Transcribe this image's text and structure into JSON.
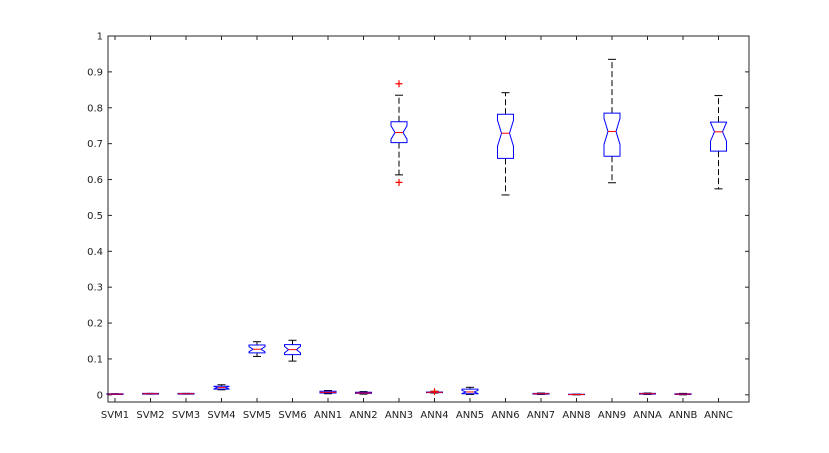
{
  "chart_data": {
    "type": "boxplot",
    "title": "",
    "xlabel": "",
    "ylabel": "",
    "ylim": [
      -0.02,
      1.0
    ],
    "yticks": [
      0,
      0.1,
      0.2,
      0.3,
      0.4,
      0.5,
      0.6,
      0.7,
      0.8,
      0.9,
      1
    ],
    "ytick_labels": [
      "0",
      "0.1",
      "0.2",
      "0.3",
      "0.4",
      "0.5",
      "0.6",
      "0.7",
      "0.8",
      "0.9",
      "1"
    ],
    "notched": true,
    "colors": {
      "box": "#0000ff",
      "median": "#ff0000",
      "whisker": "#000000",
      "outlier": "#ff0000",
      "axis": "#262626"
    },
    "categories": [
      "SVM1",
      "SVM2",
      "SVM3",
      "SVM4",
      "SVM5",
      "SVM6",
      "ANN1",
      "ANN2",
      "ANN3",
      "ANN4",
      "ANN5",
      "ANN6",
      "ANN7",
      "ANN8",
      "ANN9",
      "ANNA",
      "ANNB",
      "ANNC"
    ],
    "boxes": [
      {
        "min": 0.001,
        "q1": 0.001,
        "median": 0.002,
        "q3": 0.003,
        "max": 0.003,
        "outliers": []
      },
      {
        "min": 0.002,
        "q1": 0.002,
        "median": 0.003,
        "q3": 0.004,
        "max": 0.004,
        "outliers": []
      },
      {
        "min": 0.002,
        "q1": 0.002,
        "median": 0.003,
        "q3": 0.004,
        "max": 0.004,
        "outliers": []
      },
      {
        "min": 0.014,
        "q1": 0.016,
        "median": 0.02,
        "q3": 0.024,
        "max": 0.028,
        "outliers": []
      },
      {
        "min": 0.107,
        "q1": 0.117,
        "median": 0.127,
        "q3": 0.139,
        "max": 0.148,
        "outliers": []
      },
      {
        "min": 0.094,
        "q1": 0.112,
        "median": 0.126,
        "q3": 0.14,
        "max": 0.152,
        "outliers": []
      },
      {
        "min": 0.003,
        "q1": 0.005,
        "median": 0.007,
        "q3": 0.01,
        "max": 0.012,
        "outliers": []
      },
      {
        "min": 0.002,
        "q1": 0.004,
        "median": 0.005,
        "q3": 0.007,
        "max": 0.009,
        "outliers": []
      },
      {
        "min": 0.613,
        "q1": 0.703,
        "median": 0.731,
        "q3": 0.761,
        "max": 0.835,
        "outliers": [
          0.867,
          0.592
        ]
      },
      {
        "min": 0.005,
        "q1": 0.006,
        "median": 0.007,
        "q3": 0.008,
        "max": 0.01,
        "outliers": [
          0.009
        ]
      },
      {
        "min": 0.001,
        "q1": 0.003,
        "median": 0.008,
        "q3": 0.016,
        "max": 0.021,
        "outliers": []
      },
      {
        "min": 0.557,
        "q1": 0.659,
        "median": 0.729,
        "q3": 0.782,
        "max": 0.842,
        "outliers": []
      },
      {
        "min": 0.001,
        "q1": 0.002,
        "median": 0.003,
        "q3": 0.004,
        "max": 0.005,
        "outliers": []
      },
      {
        "min": 0.0,
        "q1": 0.0005,
        "median": 0.001,
        "q3": 0.0015,
        "max": 0.002,
        "outliers": []
      },
      {
        "min": 0.591,
        "q1": 0.665,
        "median": 0.734,
        "q3": 0.785,
        "max": 0.935,
        "outliers": []
      },
      {
        "min": 0.001,
        "q1": 0.002,
        "median": 0.003,
        "q3": 0.004,
        "max": 0.005,
        "outliers": []
      },
      {
        "min": 0.0,
        "q1": 0.001,
        "median": 0.002,
        "q3": 0.003,
        "max": 0.004,
        "outliers": []
      },
      {
        "min": 0.574,
        "q1": 0.679,
        "median": 0.733,
        "q3": 0.76,
        "max": 0.834,
        "outliers": []
      }
    ]
  }
}
